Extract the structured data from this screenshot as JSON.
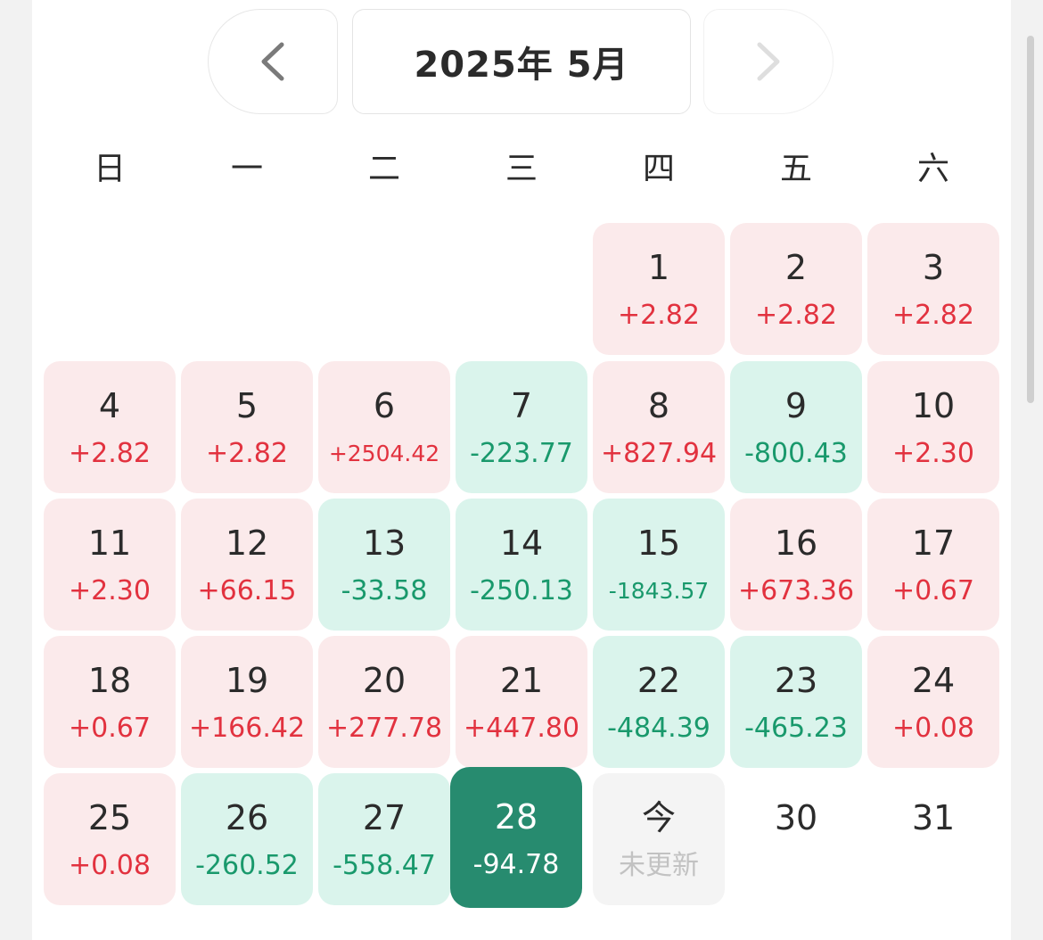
{
  "header": {
    "title": "2025年 5月",
    "prev_icon": "chevron-left-icon",
    "next_icon": "chevron-right-icon"
  },
  "weekdays": [
    "日",
    "一",
    "二",
    "三",
    "四",
    "五",
    "六"
  ],
  "colors": {
    "gain_bg": "#fbeaeb",
    "gain_text": "#e2323f",
    "loss_bg": "#daf4ec",
    "loss_text": "#19996c",
    "selected_bg": "#278b6f",
    "pending_bg": "#f4f4f4"
  },
  "days": [
    {
      "day": "1",
      "value": "+2.82",
      "status": "up"
    },
    {
      "day": "2",
      "value": "+2.82",
      "status": "up"
    },
    {
      "day": "3",
      "value": "+2.82",
      "status": "up"
    },
    {
      "day": "4",
      "value": "+2.82",
      "status": "up"
    },
    {
      "day": "5",
      "value": "+2.82",
      "status": "up"
    },
    {
      "day": "6",
      "value": "+2504.42",
      "status": "up"
    },
    {
      "day": "7",
      "value": "-223.77",
      "status": "down"
    },
    {
      "day": "8",
      "value": "+827.94",
      "status": "up"
    },
    {
      "day": "9",
      "value": "-800.43",
      "status": "down"
    },
    {
      "day": "10",
      "value": "+2.30",
      "status": "up"
    },
    {
      "day": "11",
      "value": "+2.30",
      "status": "up"
    },
    {
      "day": "12",
      "value": "+66.15",
      "status": "up"
    },
    {
      "day": "13",
      "value": "-33.58",
      "status": "down"
    },
    {
      "day": "14",
      "value": "-250.13",
      "status": "down"
    },
    {
      "day": "15",
      "value": "-1843.57",
      "status": "down"
    },
    {
      "day": "16",
      "value": "+673.36",
      "status": "up"
    },
    {
      "day": "17",
      "value": "+0.67",
      "status": "up"
    },
    {
      "day": "18",
      "value": "+0.67",
      "status": "up"
    },
    {
      "day": "19",
      "value": "+166.42",
      "status": "up"
    },
    {
      "day": "20",
      "value": "+277.78",
      "status": "up"
    },
    {
      "day": "21",
      "value": "+447.80",
      "status": "up"
    },
    {
      "day": "22",
      "value": "-484.39",
      "status": "down"
    },
    {
      "day": "23",
      "value": "-465.23",
      "status": "down"
    },
    {
      "day": "24",
      "value": "+0.08",
      "status": "up"
    },
    {
      "day": "25",
      "value": "+0.08",
      "status": "up"
    },
    {
      "day": "26",
      "value": "-260.52",
      "status": "down"
    },
    {
      "day": "27",
      "value": "-558.47",
      "status": "down"
    },
    {
      "day": "28",
      "value": "-94.78",
      "status": "selected"
    },
    {
      "day": "今",
      "value": "未更新",
      "status": "pending"
    },
    {
      "day": "30",
      "value": "",
      "status": "empty"
    },
    {
      "day": "31",
      "value": "",
      "status": "empty"
    }
  ]
}
